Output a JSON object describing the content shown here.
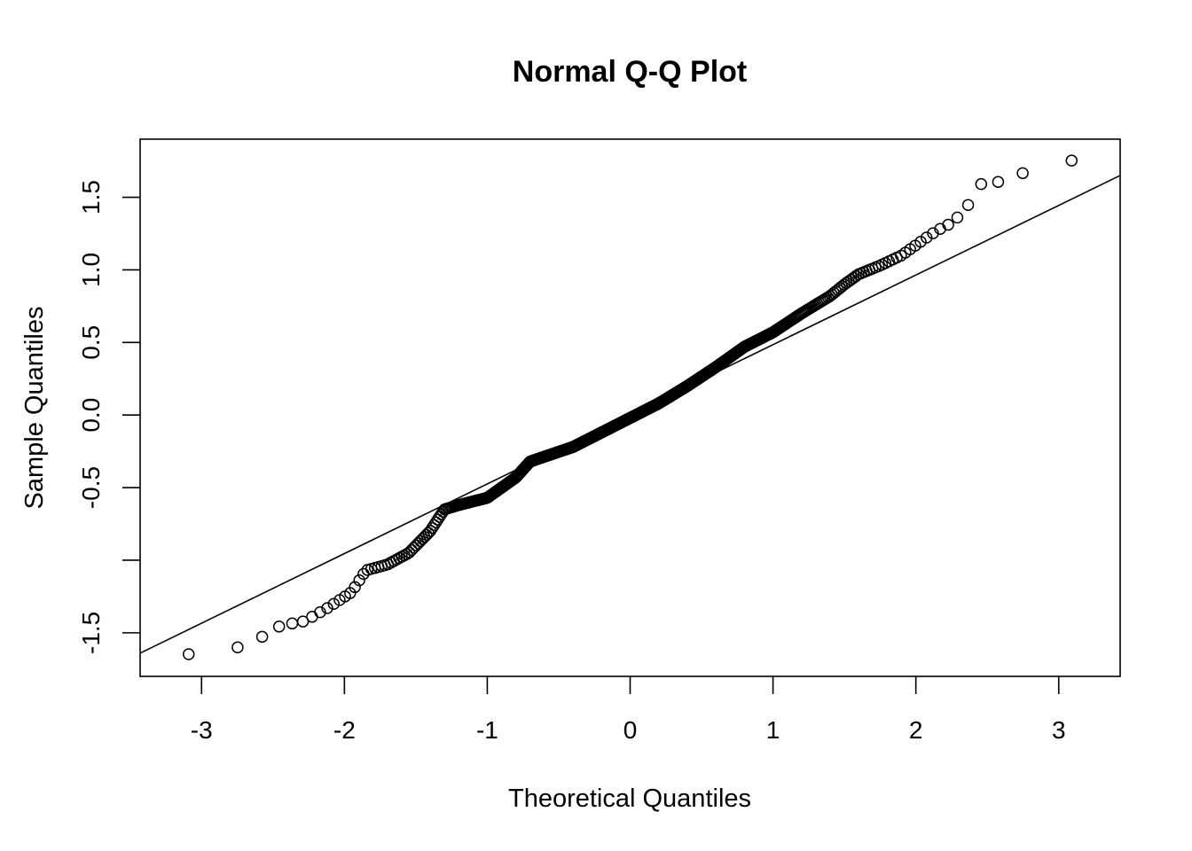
{
  "chart_data": {
    "type": "scatter",
    "title": "Normal Q-Q Plot",
    "xlabel": "Theoretical Quantiles",
    "ylabel": "Sample Quantiles",
    "xlim": [
      -3.43,
      3.43
    ],
    "ylim": [
      -1.8,
      1.9
    ],
    "x_ticks": [
      -3,
      -2,
      -1,
      0,
      1,
      2,
      3
    ],
    "x_tick_labels": [
      "-3",
      "-2",
      "-1",
      "0",
      "1",
      "2",
      "3"
    ],
    "y_ticks": [
      -1.5,
      -1.0,
      -0.5,
      0.0,
      0.5,
      1.0,
      1.5
    ],
    "y_tick_labels": [
      "-1.5",
      "",
      "-0.5",
      "0.0",
      "0.5",
      "1.0",
      "1.5"
    ],
    "grid": false,
    "reference_line": {
      "x": [
        -3.43,
        3.43
      ],
      "y": [
        -1.64,
        1.65
      ]
    },
    "anchor_points": [
      [
        -3.17,
        -1.65
      ],
      [
        -2.85,
        -1.64
      ],
      [
        -2.67,
        -1.57
      ],
      [
        -2.56,
        -1.52
      ],
      [
        -2.47,
        -1.46
      ],
      [
        -2.39,
        -1.44
      ],
      [
        -2.28,
        -1.42
      ],
      [
        -2.12,
        -1.33
      ],
      [
        -1.95,
        -1.22
      ],
      [
        -1.85,
        -1.07
      ],
      [
        -1.7,
        -1.03
      ],
      [
        -1.55,
        -0.95
      ],
      [
        -1.4,
        -0.8
      ],
      [
        -1.3,
        -0.65
      ],
      [
        -1.2,
        -0.62
      ],
      [
        -1.0,
        -0.57
      ],
      [
        -0.8,
        -0.43
      ],
      [
        -0.7,
        -0.32
      ],
      [
        -0.4,
        -0.22
      ],
      [
        -0.2,
        -0.12
      ],
      [
        0.0,
        -0.02
      ],
      [
        0.2,
        0.08
      ],
      [
        0.4,
        0.2
      ],
      [
        0.6,
        0.33
      ],
      [
        0.8,
        0.47
      ],
      [
        1.0,
        0.57
      ],
      [
        1.2,
        0.7
      ],
      [
        1.4,
        0.82
      ],
      [
        1.5,
        0.9
      ],
      [
        1.6,
        0.97
      ],
      [
        1.75,
        1.03
      ],
      [
        1.9,
        1.1
      ],
      [
        2.0,
        1.17
      ],
      [
        2.1,
        1.24
      ],
      [
        2.2,
        1.3
      ],
      [
        2.25,
        1.32
      ],
      [
        2.35,
        1.42
      ],
      [
        2.45,
        1.59
      ],
      [
        2.56,
        1.6
      ],
      [
        2.67,
        1.64
      ],
      [
        2.85,
        1.7
      ],
      [
        3.17,
        1.77
      ]
    ],
    "n_points": 500
  }
}
